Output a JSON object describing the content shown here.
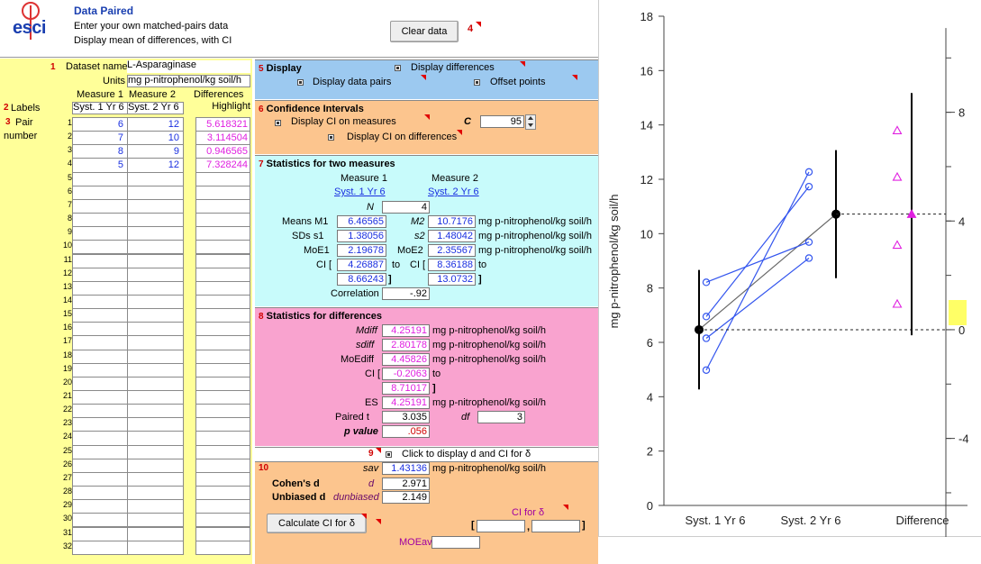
{
  "header": {
    "logo": "esci",
    "title": "Data Paired",
    "line1": "Enter your own matched-pairs data",
    "line2": "Display mean of differences, with CI",
    "clear_button": "Clear data",
    "clear_num": "4"
  },
  "data_panel": {
    "dataset_num": "1",
    "dataset_label": "Dataset name",
    "dataset_value": "L-Asparaginase",
    "units_label": "Units",
    "units_value": "mg p-nitrophenol/kg soil/h",
    "col_m1": "Measure 1",
    "col_m2": "Measure 2",
    "col_diff": "Differences",
    "labels_num": "2",
    "labels_label": "Labels",
    "label_m1": "Syst. 1 Yr 6",
    "label_m2": "Syst. 2 Yr 6",
    "label_diff": "Highlight",
    "pair_num": "3",
    "pair_label": "Pair",
    "number_label": "number",
    "rows": [
      "1",
      "2",
      "3",
      "4",
      "5",
      "6",
      "7",
      "8",
      "9",
      "10",
      "11",
      "12",
      "13",
      "14",
      "15",
      "16",
      "17",
      "18",
      "19",
      "20",
      "21",
      "22",
      "23",
      "24",
      "25",
      "26",
      "27",
      "28",
      "29",
      "30",
      "31",
      "32"
    ],
    "m1": [
      "6",
      "7",
      "8",
      "5"
    ],
    "m2": [
      "12",
      "10",
      "9",
      "12"
    ],
    "diffs": [
      "5.618321",
      "3.114504",
      "0.946565",
      "7.328244"
    ]
  },
  "display": {
    "num": "5",
    "title": "Display",
    "diff_label": "Display differences",
    "pairs_label": "Display data pairs",
    "offset_label": "Offset points"
  },
  "ci": {
    "num": "6",
    "title": "Confidence Intervals",
    "measures_label": "Display CI on measures",
    "c_label": "C",
    "c_value": "95",
    "diffs_label": "Display CI on differences"
  },
  "stats_two": {
    "num": "7",
    "title": "Statistics for two measures",
    "m1_head": "Measure 1",
    "m2_head": "Measure 2",
    "m1_name": "Syst. 1 Yr 6",
    "m2_name": "Syst. 2 Yr 6",
    "n_label": "N",
    "n_value": "4",
    "means_label": "Means M1",
    "mean1": "6.46565",
    "m2_label": "M2",
    "mean2": "10.7176",
    "sds_label": "SDs s1",
    "sd1": "1.38056",
    "s2_label": "s2",
    "sd2": "1.48042",
    "moe1_label": "MoE1",
    "moe1": "2.19678",
    "moe2_label": "MoE2",
    "moe2": "2.35567",
    "ci_label": "CI [",
    "ci1_lo": "4.26887",
    "to": "to",
    "ci2_label": "CI [",
    "ci2_lo": "8.36188",
    "ci1_hi": "8.66243",
    "ci2_hi": "13.0732",
    "close": "]",
    "corr_label": "Correlation",
    "corr": "-.92",
    "units": "mg p-nitrophenol/kg soil/h"
  },
  "stats_diff": {
    "num": "8",
    "title": "Statistics for differences",
    "mdiff_label": "Mdiff",
    "mdiff": "4.25191",
    "sdiff_label": "sdiff",
    "sdiff": "2.80178",
    "moediff_label": "MoEdiff",
    "moediff": "4.45826",
    "ci_label": "CI [",
    "ci_lo": "-0.2063",
    "to": "to",
    "ci_hi": "8.71017",
    "close": "]",
    "es_label": "ES",
    "es": "4.25191",
    "t_label": "Paired t",
    "t": "3.035",
    "df_label": "df",
    "df": "3",
    "p_label": "p value",
    "p": ".056",
    "units": "mg p-nitrophenol/kg soil/h"
  },
  "effect": {
    "num9": "9",
    "click_label": "Click to display d and CI for δ",
    "num": "10",
    "sav_label": "sav",
    "sav": "1.43136",
    "units": "mg p-nitrophenol/kg soil/h",
    "cohen_label": "Cohen's d",
    "d_label": "d",
    "d": "2.971",
    "unb_label": "Unbiased d",
    "dunb_label": "dunbiased",
    "dunb": "2.149",
    "calc_button": "Calculate CI for δ",
    "ci_delta_label": "CI for δ",
    "moeav_label": "MOEav",
    "bracket_open": "[",
    "comma": ",",
    "bracket_close": "]"
  },
  "chart_data": {
    "type": "scatter",
    "ylabel": "mg p-nitrophenol/kg soil/h",
    "ylim": [
      0,
      18
    ],
    "yticks": [
      "0",
      "2",
      "4",
      "6",
      "8",
      "10",
      "12",
      "14",
      "16",
      "18"
    ],
    "y2ticks": [
      "-4",
      "0",
      "4",
      "8"
    ],
    "categories": [
      "Syst. 1 Yr 6",
      "Syst. 2 Yr 6",
      "Difference"
    ],
    "pairs": [
      [
        6.95,
        11.73
      ],
      [
        6.15,
        9.1
      ],
      [
        8.21,
        9.69
      ],
      [
        4.98,
        12.27
      ]
    ],
    "means": {
      "m1": 6.46565,
      "m2": 10.7176,
      "mdiff": 4.25191
    },
    "ci_m1": [
      4.26887,
      8.66243
    ],
    "ci_m2": [
      8.36188,
      13.0732
    ],
    "diffs": [
      5.618321,
      3.114504,
      0.946565,
      7.328244
    ],
    "ci_diff": [
      -0.2063,
      8.71017
    ],
    "colors": {
      "pairs": "#3355ee",
      "diffs": "#e020e0",
      "highlight": "#ffff66"
    }
  }
}
